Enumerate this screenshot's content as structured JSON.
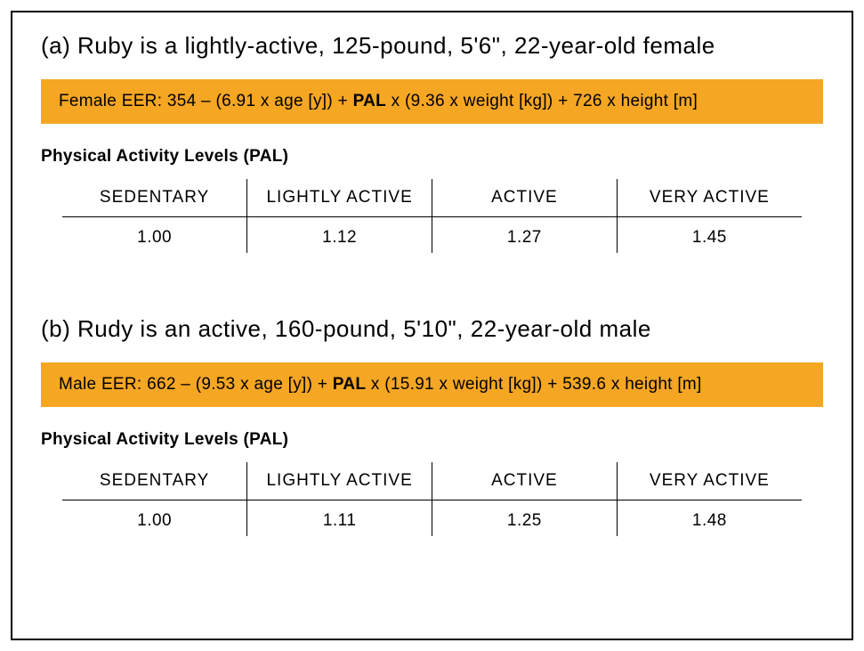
{
  "card": {
    "border_color": "#000000",
    "background_color": "#ffffff"
  },
  "formula_highlight_color": "#f5a623",
  "text_color": "#000000",
  "sections": {
    "a": {
      "title": "(a)  Ruby is a lightly-active, 125-pound, 5'6\", 22-year-old female",
      "formula_prefix": "Female EER: 354 – (6.91 x age [y]) + ",
      "formula_pal": "PAL",
      "formula_suffix": " x (9.36 x weight [kg]) + 726 x height [m]",
      "pal_heading": "Physical Activity Levels (PAL)",
      "pal_table": {
        "columns": [
          "SEDENTARY",
          "LIGHTLY ACTIVE",
          "ACTIVE",
          "VERY ACTIVE"
        ],
        "values": [
          "1.00",
          "1.12",
          "1.27",
          "1.45"
        ]
      }
    },
    "b": {
      "title": "(b)  Rudy is an active, 160-pound, 5'10\", 22-year-old male",
      "formula_prefix": "Male EER: 662 – (9.53 x age [y]) + ",
      "formula_pal": "PAL",
      "formula_suffix": " x (15.91 x weight [kg]) + 539.6 x height [m]",
      "pal_heading": "Physical Activity Levels (PAL)",
      "pal_table": {
        "columns": [
          "SEDENTARY",
          "LIGHTLY ACTIVE",
          "ACTIVE",
          "VERY ACTIVE"
        ],
        "values": [
          "1.00",
          "1.11",
          "1.25",
          "1.48"
        ]
      }
    }
  },
  "table_style": {
    "header_border_color": "#000000",
    "cell_divider_color": "#000000",
    "header_fontsize": 19,
    "value_fontsize": 19
  },
  "title_fontsize": 26,
  "formula_fontsize": 19
}
